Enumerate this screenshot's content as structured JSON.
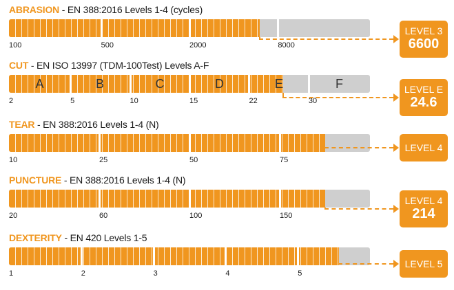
{
  "sections": [
    {
      "category": "ABRASION",
      "standard": " - EN 388:2016 Levels 1-4 (cycles)",
      "fill": 0.695,
      "segments": [
        0.255,
        0.5,
        0.745
      ],
      "ticks": [
        "100",
        "500",
        "2000",
        "8000"
      ],
      "letters": [],
      "badge": {
        "level": "LEVEL 3",
        "value": "6600"
      }
    },
    {
      "category": "CUT",
      "standard": " - EN ISO 13997 (TDM-100Test) Levels A-F",
      "fill": 0.76,
      "segments": [
        0.17,
        0.335,
        0.5,
        0.665,
        0.83
      ],
      "ticks": [
        "2",
        "5",
        "10",
        "15",
        "22",
        "30"
      ],
      "letters": [
        "A",
        "B",
        "C",
        "D",
        "E",
        "F"
      ],
      "badge": {
        "level": "LEVEL E",
        "value": "24.6"
      }
    },
    {
      "category": "TEAR",
      "standard": " - EN 388:2016 Levels 1-4 (N)",
      "fill": 0.875,
      "segments": [
        0.25,
        0.5,
        0.75
      ],
      "ticks": [
        "10",
        "25",
        "50",
        "75"
      ],
      "letters": [],
      "badge": {
        "level": "LEVEL 4",
        "value": ""
      }
    },
    {
      "category": "PUNCTURE",
      "standard": " - EN 388:2016 Levels 1-4 (N)",
      "fill": 0.875,
      "segments": [
        0.25,
        0.5,
        0.75
      ],
      "ticks": [
        "20",
        "60",
        "100",
        "150"
      ],
      "letters": [],
      "badge": {
        "level": "LEVEL 4",
        "value": "214"
      }
    },
    {
      "category": "DEXTERITY",
      "standard": " - EN 420 Levels 1-5",
      "fill": 0.915,
      "segments": [
        0.2,
        0.4,
        0.6,
        0.8
      ],
      "ticks": [
        "1",
        "2",
        "3",
        "4",
        "5"
      ],
      "letters": [],
      "badge": {
        "level": "LEVEL 5",
        "value": ""
      }
    }
  ],
  "colors": {
    "accent": "#f0961f",
    "empty": "#cfcfcf",
    "text": "#1a1a1a"
  }
}
